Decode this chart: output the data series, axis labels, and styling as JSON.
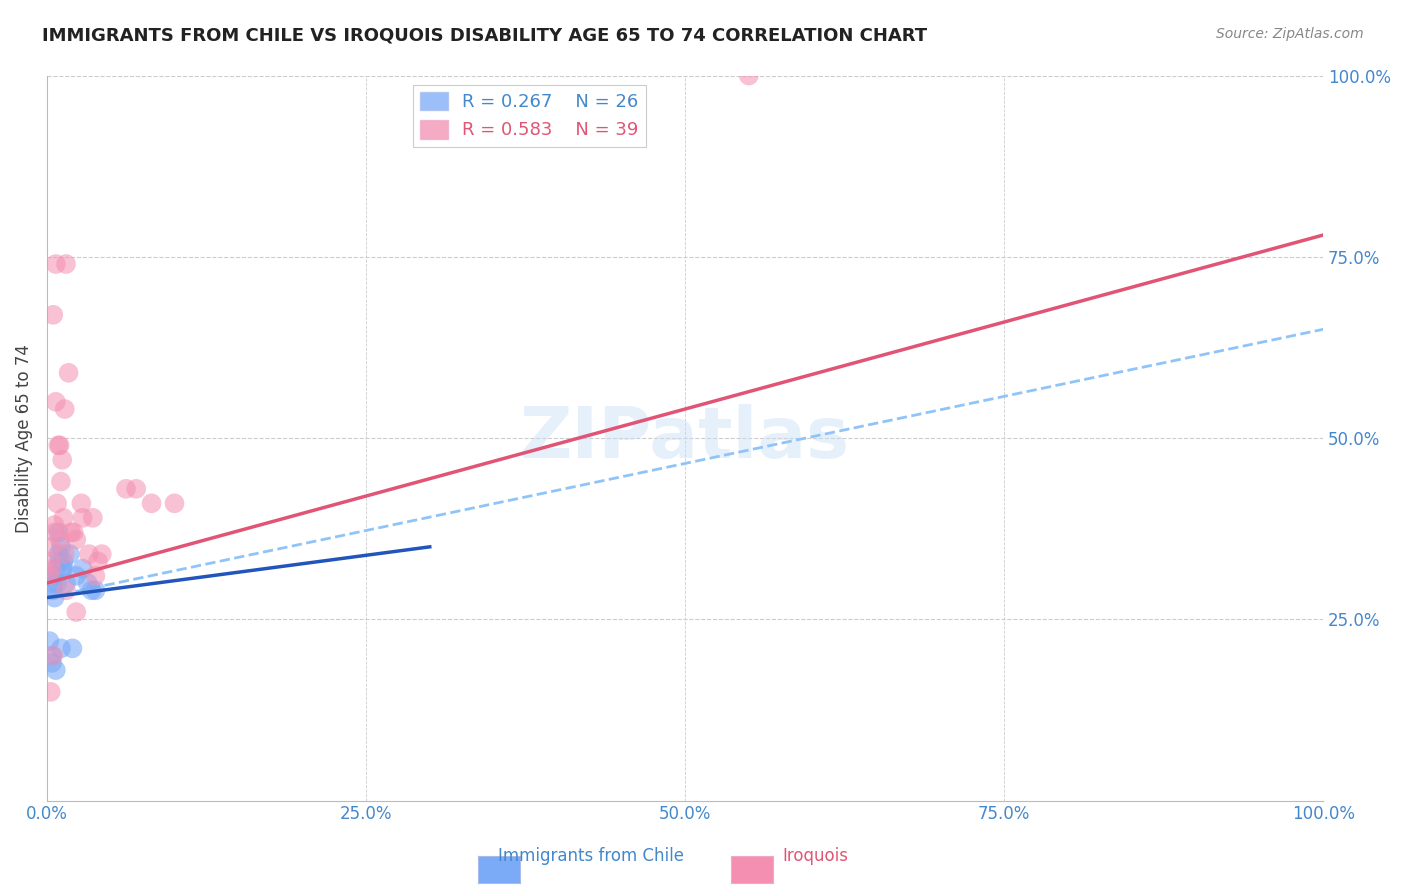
{
  "title": "IMMIGRANTS FROM CHILE VS IROQUOIS DISABILITY AGE 65 TO 74 CORRELATION CHART",
  "source": "Source: ZipAtlas.com",
  "ylabel": "Disability Age 65 to 74",
  "watermark": "ZIPatlas",
  "legend_blue_r": "R = 0.267",
  "legend_blue_n": "N = 26",
  "legend_pink_r": "R = 0.583",
  "legend_pink_n": "N = 39",
  "xlim": [
    0,
    100
  ],
  "ylim": [
    0,
    100
  ],
  "blue_color": "#7baaf7",
  "pink_color": "#f48fb1",
  "blue_line_color": "#2255bb",
  "pink_line_color": "#e05575",
  "dashed_line_color": "#90c4f9",
  "background": "#ffffff",
  "grid_color": "#cccccc",
  "tick_color": "#4488cc",
  "blue_scatter_x": [
    0.5,
    0.7,
    0.9,
    1.1,
    1.3,
    0.3,
    0.5,
    0.8,
    1.0,
    1.2,
    0.6,
    0.9,
    1.3,
    1.8,
    2.3,
    2.8,
    3.2,
    3.8,
    0.4,
    0.7,
    1.1,
    1.5,
    2.0,
    3.5,
    0.2,
    0.4
  ],
  "blue_scatter_y": [
    30,
    32,
    34,
    35,
    33,
    31,
    29,
    30,
    33,
    32,
    28,
    37,
    32,
    34,
    31,
    32,
    30,
    29,
    19,
    18,
    21,
    30,
    21,
    29,
    22,
    20
  ],
  "pink_scatter_x": [
    0.2,
    0.3,
    0.4,
    0.6,
    0.8,
    1.0,
    1.1,
    1.3,
    1.4,
    1.7,
    1.9,
    2.3,
    2.8,
    3.3,
    3.8,
    0.5,
    0.7,
    0.9,
    1.2,
    1.4,
    2.1,
    2.7,
    3.6,
    0.5,
    1.5,
    2.3,
    4.3,
    6.2,
    8.2,
    0.3,
    0.7,
    1.5,
    55.0,
    0.3,
    0.6,
    1.0,
    4.0,
    7.0,
    10.0
  ],
  "pink_scatter_y": [
    31,
    35,
    32,
    37,
    41,
    49,
    44,
    39,
    54,
    59,
    37,
    36,
    39,
    34,
    31,
    67,
    55,
    49,
    47,
    34,
    37,
    41,
    39,
    20,
    29,
    26,
    34,
    43,
    41,
    15,
    74,
    74,
    100,
    33,
    38,
    36,
    33,
    43,
    41
  ],
  "blue_solid_x0": 0,
  "blue_solid_y0": 28,
  "blue_solid_x1": 30,
  "blue_solid_y1": 35,
  "blue_dashed_x0": 0,
  "blue_dashed_y0": 28,
  "blue_dashed_x1": 100,
  "blue_dashed_y1": 65,
  "pink_solid_x0": 0,
  "pink_solid_y0": 30,
  "pink_solid_x1": 100,
  "pink_solid_y1": 78
}
